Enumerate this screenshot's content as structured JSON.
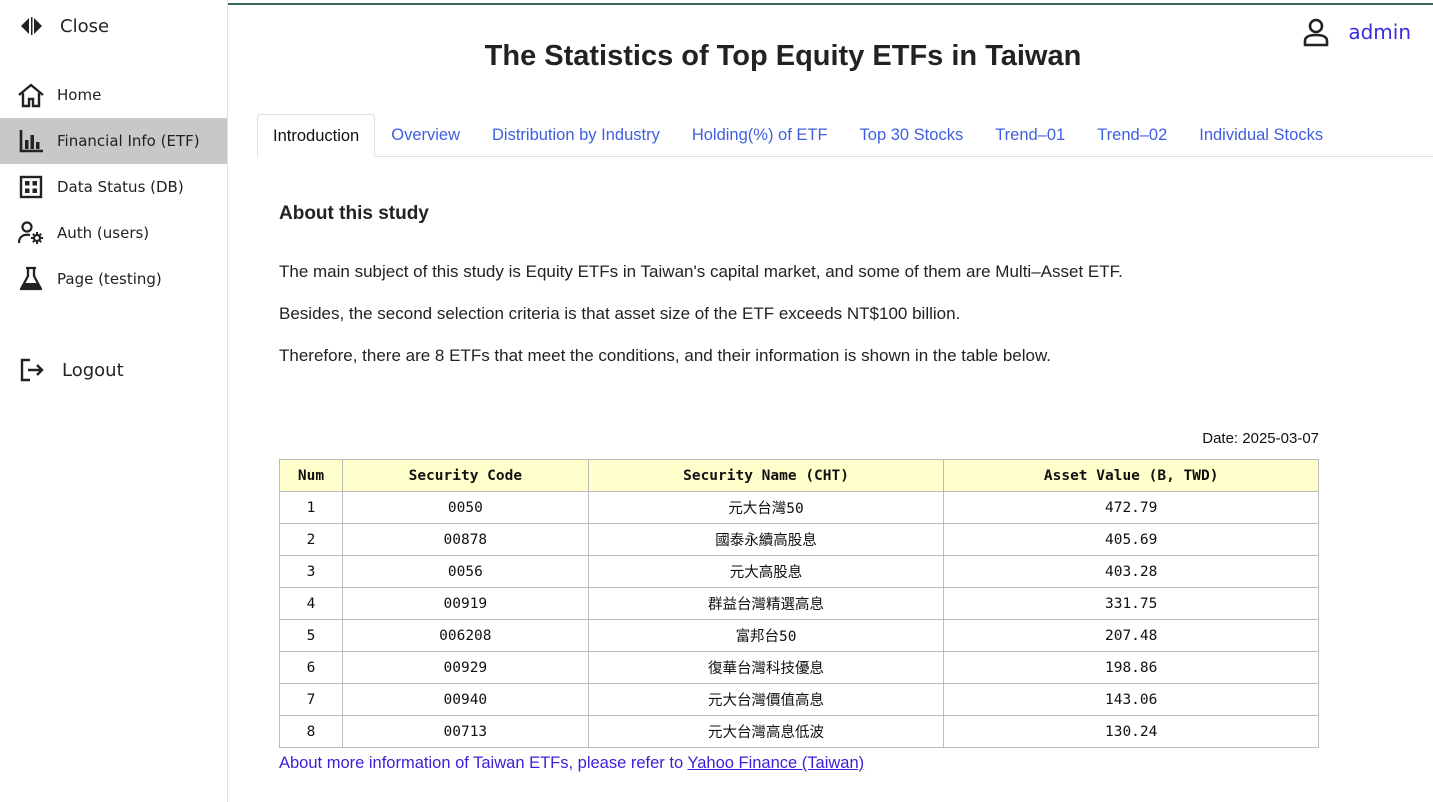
{
  "sidebar": {
    "close_label": "Close",
    "items": [
      {
        "label": "Home",
        "icon": "home-icon"
      },
      {
        "label": "Financial Info (ETF)",
        "icon": "bar-chart-icon",
        "active": true
      },
      {
        "label": "Data Status (DB)",
        "icon": "grid-icon"
      },
      {
        "label": "Auth (users)",
        "icon": "user-gear-icon"
      },
      {
        "label": "Page (testing)",
        "icon": "flask-icon"
      }
    ],
    "logout_label": "Logout"
  },
  "header": {
    "title": "The Statistics of Top Equity ETFs in Taiwan",
    "user_name": "admin"
  },
  "tabs": [
    {
      "label": "Introduction",
      "active": true
    },
    {
      "label": "Overview"
    },
    {
      "label": "Distribution by Industry"
    },
    {
      "label": "Holding(%) of ETF"
    },
    {
      "label": "Top 30 Stocks"
    },
    {
      "label": "Trend–01"
    },
    {
      "label": "Trend–02"
    },
    {
      "label": "Individual Stocks"
    }
  ],
  "content": {
    "heading": "About this study",
    "paragraphs": [
      "The main subject of this study is Equity ETFs in Taiwan's capital market, and some of them are Multi–Asset ETF.",
      "Besides, the second selection criteria is that asset size of the ETF exceeds NT$100 billion.",
      "Therefore, there are 8 ETFs that meet the conditions, and their information is shown in the table below."
    ],
    "date": "Date: 2025-03-07",
    "table": {
      "headers": [
        "Num",
        "Security Code",
        "Security Name (CHT)",
        "Asset Value (B, TWD)"
      ],
      "rows": [
        [
          "1",
          "0050",
          "元大台灣50",
          "472.79"
        ],
        [
          "2",
          "00878",
          "國泰永續高股息",
          "405.69"
        ],
        [
          "3",
          "0056",
          "元大高股息",
          "403.28"
        ],
        [
          "4",
          "00919",
          "群益台灣精選高息",
          "331.75"
        ],
        [
          "5",
          "006208",
          "富邦台50",
          "207.48"
        ],
        [
          "6",
          "00929",
          "復華台灣科技優息",
          "198.86"
        ],
        [
          "7",
          "00940",
          "元大台灣價值高息",
          "143.06"
        ],
        [
          "8",
          "00713",
          "元大台灣高息低波",
          "130.24"
        ]
      ]
    },
    "footer_text": "About more information of Taiwan ETFs, please refer to ",
    "footer_link": "Yahoo Finance (Taiwan)"
  }
}
